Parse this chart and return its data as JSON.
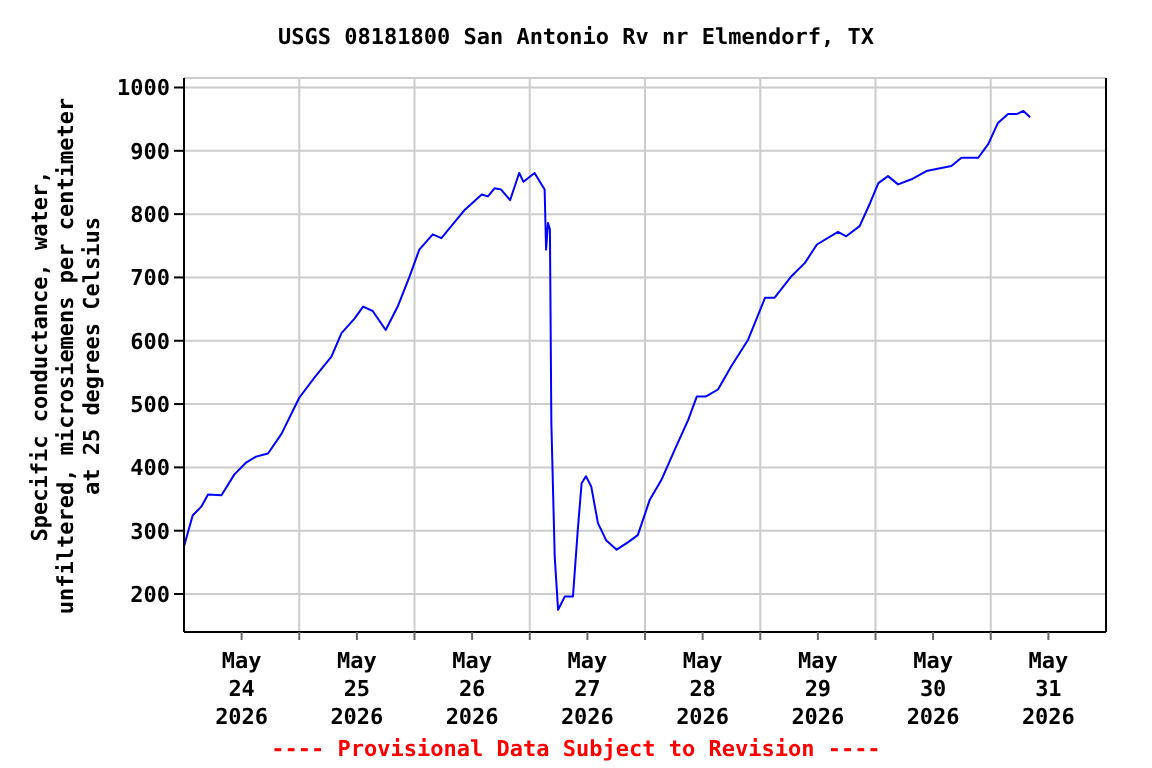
{
  "chart_data": {
    "type": "line",
    "title": "USGS 08181800 San Antonio Rv nr Elmendorf, TX",
    "ylabel": "Specific conductance, water,\nunfiltered, microsiemens per centimeter\nat 25 degrees Celsius",
    "annotations": [
      "---- Provisional Data Subject to Revision ----"
    ],
    "x": [
      "2026-05-24T00:00",
      "2026-05-24T01:48",
      "2026-05-24T03:36",
      "2026-05-24T05:00",
      "2026-05-24T07:48",
      "2026-05-24T10:30",
      "2026-05-24T13:00",
      "2026-05-24T15:00",
      "2026-05-24T17:30",
      "2026-05-24T20:18",
      "2026-05-25T00:00",
      "2026-05-25T03:12",
      "2026-05-25T06:42",
      "2026-05-25T08:48",
      "2026-05-25T11:30",
      "2026-05-25T13:18",
      "2026-05-25T15:18",
      "2026-05-25T18:00",
      "2026-05-25T20:30",
      "2026-05-25T23:00",
      "2026-05-26T01:00",
      "2026-05-26T03:48",
      "2026-05-26T05:36",
      "2026-05-26T10:30",
      "2026-05-26T14:00",
      "2026-05-26T15:18",
      "2026-05-26T16:42",
      "2026-05-26T18:00",
      "2026-05-26T19:54",
      "2026-05-26T21:48",
      "2026-05-26T22:42",
      "2026-05-27T01:00",
      "2026-05-27T03:06",
      "2026-05-27T03:24",
      "2026-05-27T03:48",
      "2026-05-27T04:12",
      "2026-05-27T04:30",
      "2026-05-27T05:12",
      "2026-05-27T05:54",
      "2026-05-27T07:18",
      "2026-05-27T09:00",
      "2026-05-27T10:00",
      "2026-05-27T10:48",
      "2026-05-27T11:42",
      "2026-05-27T12:48",
      "2026-05-27T14:12",
      "2026-05-27T15:54",
      "2026-05-27T18:06",
      "2026-05-27T20:30",
      "2026-05-27T22:30",
      "2026-05-28T01:00",
      "2026-05-28T03:24",
      "2026-05-28T06:12",
      "2026-05-28T09:00",
      "2026-05-28T10:48",
      "2026-05-28T12:42",
      "2026-05-28T15:12",
      "2026-05-28T18:00",
      "2026-05-28T21:30",
      "2026-05-29T01:00",
      "2026-05-29T03:00",
      "2026-05-29T06:30",
      "2026-05-29T09:18",
      "2026-05-29T11:48",
      "2026-05-29T16:12",
      "2026-05-29T17:54",
      "2026-05-29T20:42",
      "2026-05-29T22:54",
      "2026-05-30T00:36",
      "2026-05-30T02:36",
      "2026-05-30T04:42",
      "2026-05-30T07:30",
      "2026-05-30T10:36",
      "2026-05-30T15:48",
      "2026-05-30T17:54",
      "2026-05-30T21:24",
      "2026-05-30T23:30",
      "2026-05-31T01:30",
      "2026-05-31T03:36",
      "2026-05-31T05:24",
      "2026-05-31T06:48",
      "2026-05-31T08:12"
    ],
    "series": [
      {
        "color": "#0000ff",
        "values": [
          275,
          324,
          338,
          357,
          356,
          389,
          408,
          417,
          422,
          453,
          510,
          542,
          575,
          612,
          635,
          654,
          647,
          617,
          654,
          702,
          744,
          768,
          762,
          807,
          831,
          828,
          841,
          839,
          822,
          865,
          851,
          865,
          839,
          744,
          786,
          776,
          470,
          259,
          175,
          196,
          196,
          301,
          375,
          386,
          370,
          312,
          285,
          270,
          282,
          293,
          349,
          380,
          428,
          475,
          512,
          512,
          523,
          560,
          602,
          668,
          668,
          702,
          723,
          752,
          772,
          765,
          781,
          818,
          849,
          860,
          847,
          855,
          868,
          876,
          889,
          889,
          911,
          944,
          958,
          958,
          963,
          953
        ]
      }
    ],
    "xlim": [
      "2026-05-24T00:00",
      "2026-06-01T00:00"
    ],
    "xticks": [
      {
        "value": "2026-05-24T12:00",
        "label": "May 24 2026"
      },
      {
        "value": "2026-05-25T00:00",
        "label": null
      },
      {
        "value": "2026-05-25T12:00",
        "label": "May 25 2026"
      },
      {
        "value": "2026-05-26T00:00",
        "label": null
      },
      {
        "value": "2026-05-26T12:00",
        "label": "May 26 2026"
      },
      {
        "value": "2026-05-27T00:00",
        "label": null
      },
      {
        "value": "2026-05-27T12:00",
        "label": "May 27 2026"
      },
      {
        "value": "2026-05-28T00:00",
        "label": null
      },
      {
        "value": "2026-05-28T12:00",
        "label": "May 28 2026"
      },
      {
        "value": "2026-05-29T00:00",
        "label": null
      },
      {
        "value": "2026-05-29T12:00",
        "label": "May 29 2026"
      },
      {
        "value": "2026-05-30T00:00",
        "label": null
      },
      {
        "value": "2026-05-30T12:00",
        "label": "May 30 2026"
      },
      {
        "value": "2026-05-31T00:00",
        "label": null
      },
      {
        "value": "2026-05-31T12:00",
        "label": "May 31 2026"
      }
    ],
    "ylim": [
      140,
      1015
    ],
    "yticks": [
      200,
      300,
      400,
      500,
      600,
      700,
      800,
      900,
      1000
    ],
    "grid": true,
    "marker": "none",
    "line_style": "solid"
  }
}
